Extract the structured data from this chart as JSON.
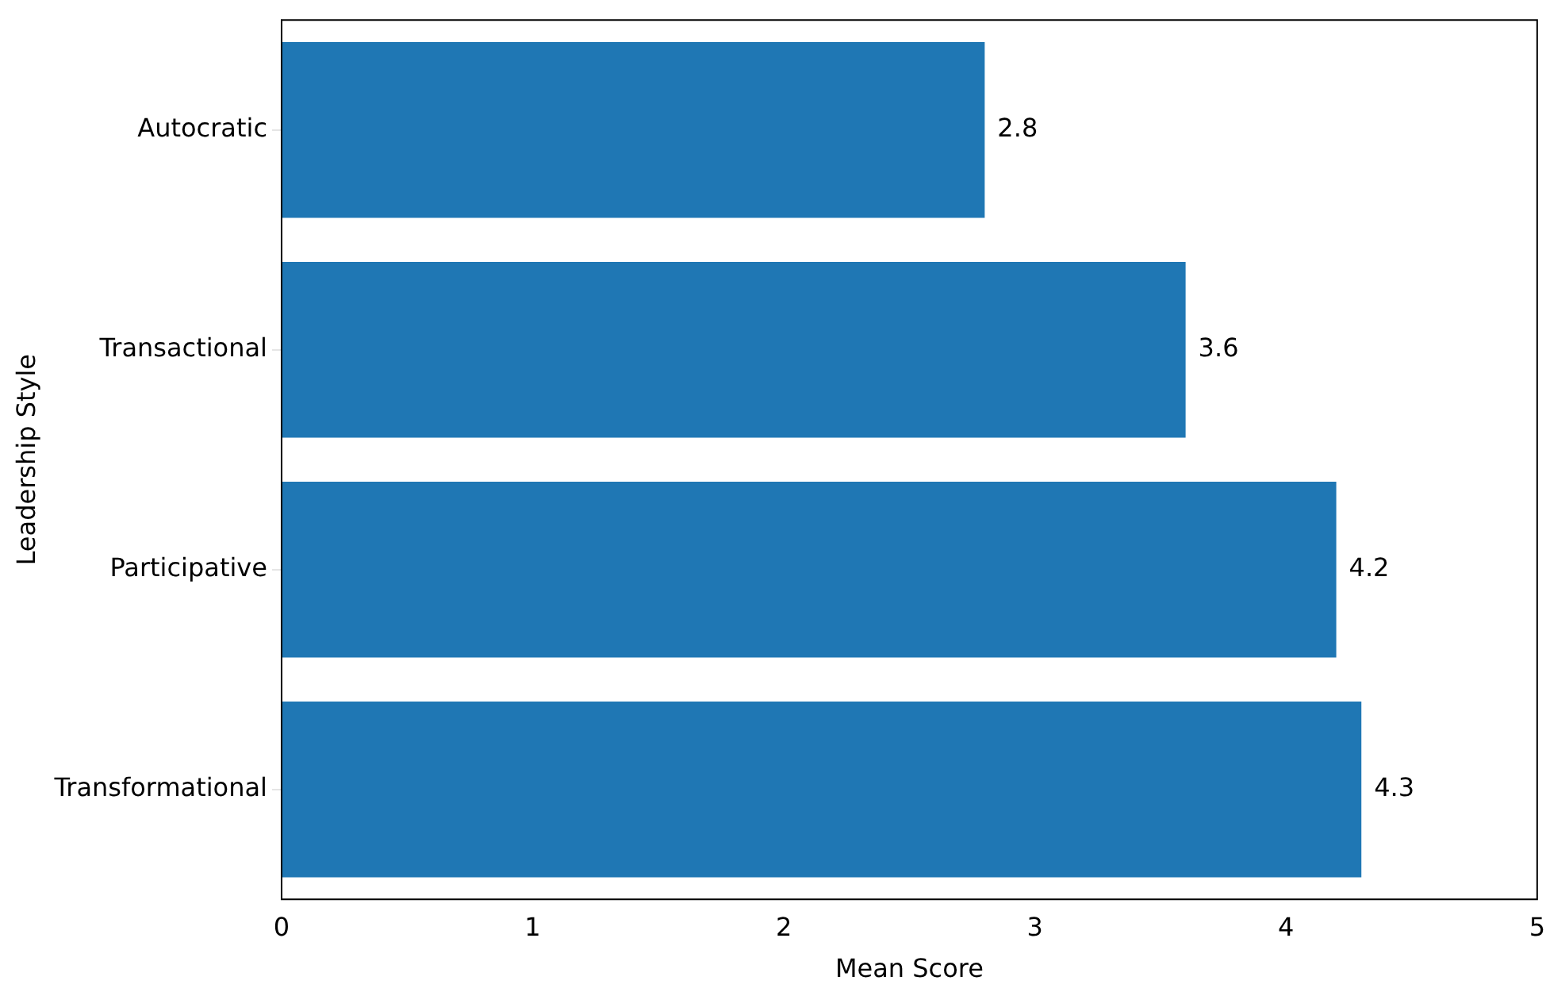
{
  "chart_data": {
    "type": "bar",
    "orientation": "horizontal",
    "xlabel": "Mean Score",
    "ylabel": "Leadership Style",
    "categories": [
      "Autocratic",
      "Transactional",
      "Participative",
      "Transformational"
    ],
    "values": [
      2.8,
      3.6,
      4.2,
      4.3
    ],
    "color": "#1f77b4",
    "xlim": [
      0,
      5
    ],
    "xticks": [
      0,
      1,
      2,
      3,
      4,
      5
    ],
    "grid": false,
    "legend": false,
    "data_labels": true
  }
}
